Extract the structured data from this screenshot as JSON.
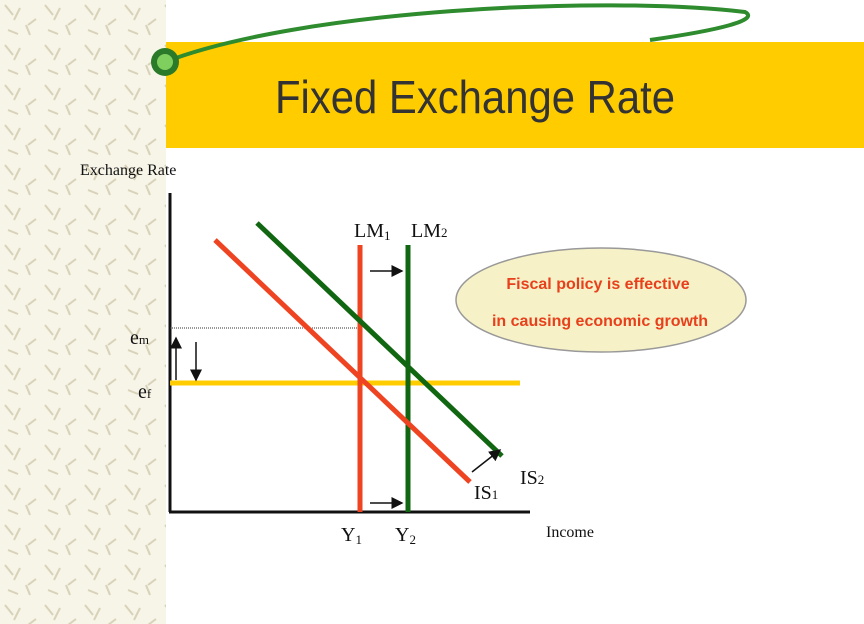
{
  "header": {
    "title": "Fixed Exchange Rate"
  },
  "axes": {
    "y_label": "Exchange Rate",
    "x_label": "Income"
  },
  "curves": {
    "lm1": {
      "main": "LM",
      "sub": "1"
    },
    "lm2": {
      "main": "LM",
      "sub": "2"
    },
    "is1": {
      "main": "IS",
      "sub": "1"
    },
    "is2": {
      "main": "IS",
      "sub": "2"
    }
  },
  "levels": {
    "em": {
      "main": "e",
      "sub": "m"
    },
    "ef": {
      "main": "e",
      "sub": "f"
    },
    "y1": {
      "main": "Y",
      "sub": "1"
    },
    "y2": {
      "main": "Y",
      "sub": "2"
    }
  },
  "callout": {
    "lines": [
      "Fiscal policy is effective",
      "in causing economic growth"
    ]
  }
}
